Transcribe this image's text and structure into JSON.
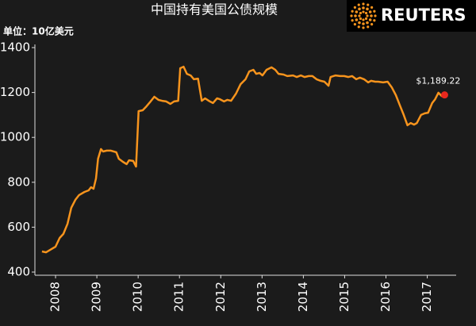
{
  "chart_data": {
    "type": "line",
    "title": "中国持有美国公债规模",
    "subtitle": "单位：10亿美元",
    "logo": "REUTERS",
    "annotation": "$1,189.22",
    "color": "#f7941d",
    "end_marker_color": "#e8281e",
    "x": [
      2008.17,
      2008.27,
      2008.4,
      2008.5,
      2008.6,
      2008.69,
      2008.79,
      2008.88,
      2008.98,
      2009.07,
      2009.2,
      2009.3,
      2009.36,
      2009.42,
      2009.48,
      2009.53,
      2009.6,
      2009.65,
      2009.74,
      2009.84,
      2009.97,
      2010.03,
      2010.13,
      2010.22,
      2010.28,
      2010.38,
      2010.45,
      2010.51,
      2010.61,
      2010.7,
      2010.8,
      2010.89,
      2010.99,
      2011.08,
      2011.18,
      2011.28,
      2011.37,
      2011.47,
      2011.52,
      2011.6,
      2011.68,
      2011.77,
      2011.85,
      2011.95,
      2012.04,
      2012.12,
      2012.21,
      2012.31,
      2012.41,
      2012.48,
      2012.58,
      2012.66,
      2012.75,
      2012.87,
      2012.98,
      2013.1,
      2013.19,
      2013.29,
      2013.36,
      2013.44,
      2013.51,
      2013.61,
      2013.73,
      2013.82,
      2013.9,
      2014.02,
      2014.11,
      2014.25,
      2014.34,
      2014.44,
      2014.53,
      2014.63,
      2014.72,
      2014.82,
      2014.92,
      2015.01,
      2015.11,
      2015.16,
      2015.28,
      2015.39,
      2015.49,
      2015.59,
      2015.68,
      2015.78,
      2015.87,
      2015.97,
      2016.07,
      2016.14,
      2016.24,
      2016.31,
      2016.43,
      2016.54,
      2016.64,
      2016.74,
      2016.83,
      2016.93,
      2017.02,
      2017.1,
      2017.18,
      2017.25,
      2017.35,
      2017.44,
      2017.52,
      2017.62,
      2017.69,
      2017.77,
      2017.85,
      2017.92
    ],
    "values": [
      492,
      488,
      502,
      513,
      552,
      570,
      615,
      686,
      722,
      743,
      757,
      764,
      778,
      771,
      817,
      905,
      948,
      937,
      941,
      941,
      934,
      905,
      891,
      881,
      898,
      895,
      870,
      1117,
      1121,
      1138,
      1160,
      1181,
      1167,
      1163,
      1160,
      1149,
      1160,
      1163,
      1308,
      1315,
      1283,
      1276,
      1259,
      1262,
      1163,
      1174,
      1163,
      1153,
      1174,
      1170,
      1160,
      1167,
      1163,
      1195,
      1237,
      1259,
      1294,
      1301,
      1283,
      1287,
      1276,
      1301,
      1312,
      1301,
      1283,
      1280,
      1273,
      1276,
      1269,
      1276,
      1269,
      1273,
      1273,
      1259,
      1252,
      1248,
      1230,
      1269,
      1276,
      1273,
      1273,
      1269,
      1273,
      1259,
      1266,
      1259,
      1245,
      1252,
      1248,
      1248,
      1245,
      1248,
      1223,
      1188,
      1146,
      1100,
      1054,
      1064,
      1057,
      1064,
      1100,
      1107,
      1110,
      1153,
      1170,
      1199,
      1184,
      1189.22
    ],
    "xlim": [
      2008,
      2018.2
    ],
    "xticks": [
      {
        "value": 2008.5,
        "label": "2008"
      },
      {
        "value": 2009.5,
        "label": "2009"
      },
      {
        "value": 2010.5,
        "label": "2010"
      },
      {
        "value": 2011.5,
        "label": "2011"
      },
      {
        "value": 2012.5,
        "label": "2012"
      },
      {
        "value": 2013.5,
        "label": "2013"
      },
      {
        "value": 2014.5,
        "label": "2014"
      },
      {
        "value": 2015.5,
        "label": "2015"
      },
      {
        "value": 2016.5,
        "label": "2016"
      },
      {
        "value": 2017.5,
        "label": "2017"
      }
    ],
    "ylim": [
      400,
      1400
    ],
    "yticks": [
      400,
      600,
      800,
      1000,
      1200,
      1400
    ],
    "grid": false
  }
}
